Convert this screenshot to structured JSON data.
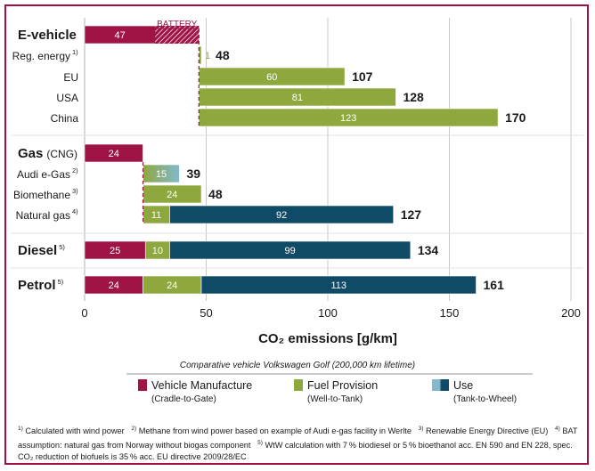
{
  "chart_data": {
    "type": "bar",
    "orientation": "horizontal",
    "stacked": true,
    "xlabel": "CO₂ emissions [g/km]",
    "xlim": [
      0,
      200
    ],
    "xticks": [
      0,
      50,
      100,
      150,
      200
    ],
    "grid": true,
    "colors": {
      "vehicle_manufacture": "#a01347",
      "fuel_provision": "#8ea83d",
      "use_gas": "#83b8cf",
      "use": "#0f4a66",
      "battery_line": "#a01347"
    },
    "battery_label": "BATTERY",
    "rows": [
      {
        "id": "ev",
        "label": "E-vehicle",
        "style": "group",
        "segments": [
          {
            "series": "vehicle_manufacture",
            "value": 47,
            "label": "47",
            "hatched_from": 29
          }
        ],
        "total": ""
      },
      {
        "id": "ev-reg",
        "label": "Reg. energy",
        "sup": "1)",
        "style": "sub",
        "segments": [
          {
            "series": "fuel_provision",
            "value": 1,
            "label": "1"
          }
        ],
        "total": "48"
      },
      {
        "id": "ev-eu",
        "label": "EU",
        "style": "sub",
        "segments": [
          {
            "series": "fuel_provision",
            "value": 60,
            "label": "60"
          }
        ],
        "total": "107"
      },
      {
        "id": "ev-usa",
        "label": "USA",
        "style": "sub",
        "segments": [
          {
            "series": "fuel_provision",
            "value": 81,
            "label": "81"
          }
        ],
        "total": "128"
      },
      {
        "id": "ev-china",
        "label": "China",
        "style": "sub",
        "segments": [
          {
            "series": "fuel_provision",
            "value": 123,
            "label": "123"
          }
        ],
        "total": "170"
      },
      {
        "id": "gas",
        "label": "Gas",
        "label_suffix": "(CNG)",
        "style": "group",
        "segments": [
          {
            "series": "vehicle_manufacture",
            "value": 24,
            "label": "24"
          }
        ],
        "total": ""
      },
      {
        "id": "gas-audi",
        "label": "Audi e-Gas",
        "sup": "2)",
        "style": "sub",
        "segments": [
          {
            "series": "fuel_provision",
            "value": 15,
            "label": "15",
            "gradient": true
          }
        ],
        "total": "39"
      },
      {
        "id": "gas-bio",
        "label": "Biomethane",
        "sup": "3)",
        "style": "sub",
        "segments": [
          {
            "series": "fuel_provision",
            "value": 24,
            "label": "24"
          }
        ],
        "total": "48"
      },
      {
        "id": "gas-nat",
        "label": "Natural gas",
        "sup": "4)",
        "style": "sub",
        "segments": [
          {
            "series": "fuel_provision",
            "value": 11,
            "label": "11"
          },
          {
            "series": "use",
            "value": 92,
            "label": "92"
          }
        ],
        "total": "127"
      },
      {
        "id": "diesel",
        "label": "Diesel",
        "sup": "5)",
        "style": "group",
        "segments": [
          {
            "series": "vehicle_manufacture",
            "value": 25,
            "label": "25"
          },
          {
            "series": "fuel_provision",
            "value": 10,
            "label": "10"
          },
          {
            "series": "use",
            "value": 99,
            "label": "99"
          }
        ],
        "total": "134"
      },
      {
        "id": "petrol",
        "label": "Petrol",
        "sup": "5)",
        "style": "group",
        "segments": [
          {
            "series": "vehicle_manufacture",
            "value": 24,
            "label": "24"
          },
          {
            "series": "fuel_provision",
            "value": 24,
            "label": "24"
          },
          {
            "series": "use",
            "value": 113,
            "label": "113"
          }
        ],
        "total": "161"
      }
    ],
    "legend": {
      "title": "Comparative vehicle Volkswagen Golf (200,000 km lifetime)",
      "placement": "bottom",
      "items": [
        {
          "series": "vehicle_manufacture",
          "name": "Vehicle Manufacture",
          "sub": "(Cradle-to-Gate)"
        },
        {
          "series": "fuel_provision",
          "name": "Fuel Provision",
          "sub": "(Well-to-Tank)"
        },
        {
          "series": "use",
          "name": "Use",
          "sub": "(Tank-to-Wheel)"
        }
      ]
    }
  },
  "footnotes": {
    "n1_mark": "1)",
    "n1": "Calculated with wind power",
    "n2_mark": "2)",
    "n2": "Methane from wind power based on example of Audi e-gas facility in Werlte",
    "n3_mark": "3)",
    "n3": "Renewable Energy Directive (EU)",
    "n4_mark": "4)",
    "n4": "BAT assumption: natural gas from Norway without biogas component",
    "n5_mark": "5)",
    "n5": "WtW calculation with 7 % biodiesel or 5 % bioethanol acc. EN 590 and EN 228, spec. CO₂ reduction of biofuels is 35 % acc. EU directive 2009/28/EC"
  }
}
